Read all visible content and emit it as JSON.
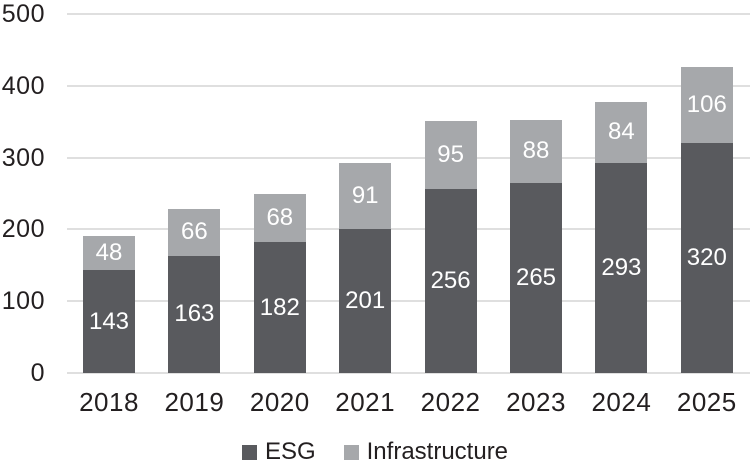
{
  "chart_data": {
    "type": "bar",
    "stacked": true,
    "title": "",
    "xlabel": "",
    "ylabel": "",
    "categories": [
      "2018",
      "2019",
      "2020",
      "2021",
      "2022",
      "2023",
      "2024",
      "2025"
    ],
    "series": [
      {
        "name": "ESG",
        "color": "#595a5e",
        "values": [
          143,
          163,
          182,
          201,
          256,
          265,
          293,
          320
        ]
      },
      {
        "name": "Infrastructure",
        "color": "#a6a8ab",
        "values": [
          48,
          66,
          68,
          91,
          95,
          88,
          84,
          106
        ]
      }
    ],
    "totals": [
      191,
      229,
      250,
      292,
      351,
      353,
      377,
      426
    ],
    "ylim": [
      0,
      500
    ],
    "yticks": [
      0,
      100,
      200,
      300,
      400,
      500
    ],
    "grid": true,
    "legend_position": "bottom",
    "colors": {
      "background": "#ffffff",
      "gridline": "#dfdfdf",
      "axis_text": "#231f20",
      "bar_value_text": "#ffffff",
      "legend_text": "#231f20"
    }
  }
}
